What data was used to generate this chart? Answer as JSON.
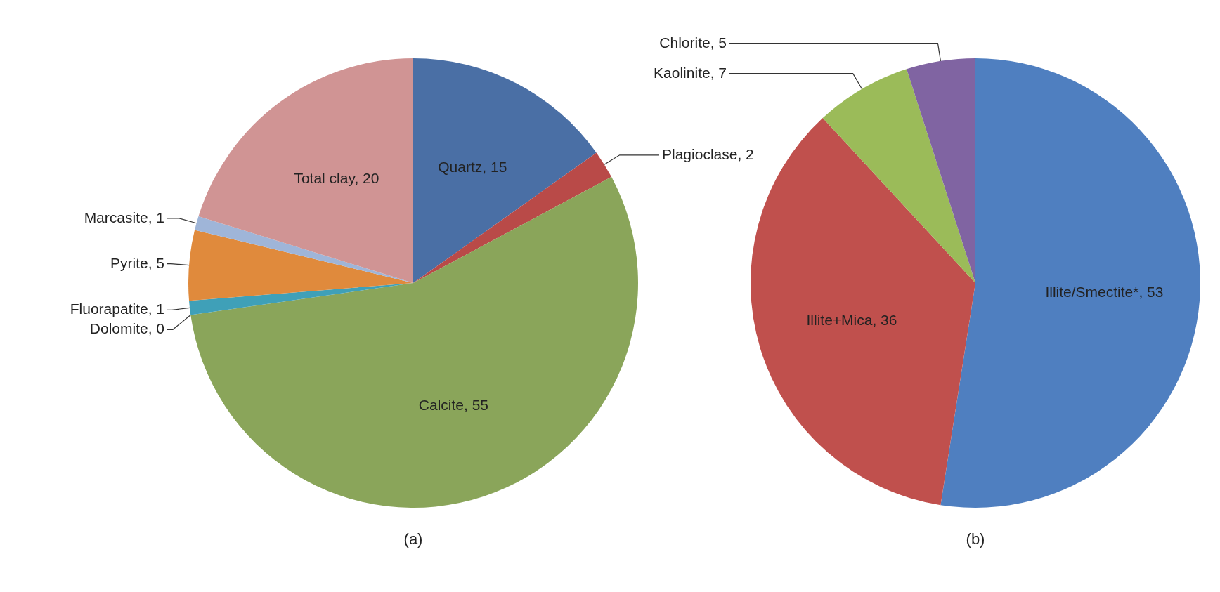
{
  "chart_data": [
    {
      "type": "pie",
      "title": "(a)",
      "categories": [
        "Quartz, 15",
        "Plagioclase, 2",
        "Calcite, 55",
        "Dolomite, 0",
        "Fluorapatite, 1",
        "Pyrite, 5",
        "Marcasite, 1",
        "Total clay, 20"
      ],
      "values": [
        15,
        2,
        55,
        0,
        1,
        5,
        1,
        20
      ],
      "colors": [
        "#4a6fa5",
        "#b94a48",
        "#8aa55a",
        "#7b5fa0",
        "#3fa0b8",
        "#e08a3c",
        "#9fb5d8",
        "#d09494"
      ]
    },
    {
      "type": "pie",
      "title": "(b)",
      "categories": [
        "Illite/Smectite*, 53",
        "Illite+Mica, 36",
        "Kaolinite, 7",
        "Chlorite, 5"
      ],
      "values": [
        53,
        36,
        7,
        5
      ],
      "colors": [
        "#4f7fc0",
        "#c0504d",
        "#9bbb59",
        "#8064a2"
      ]
    }
  ]
}
